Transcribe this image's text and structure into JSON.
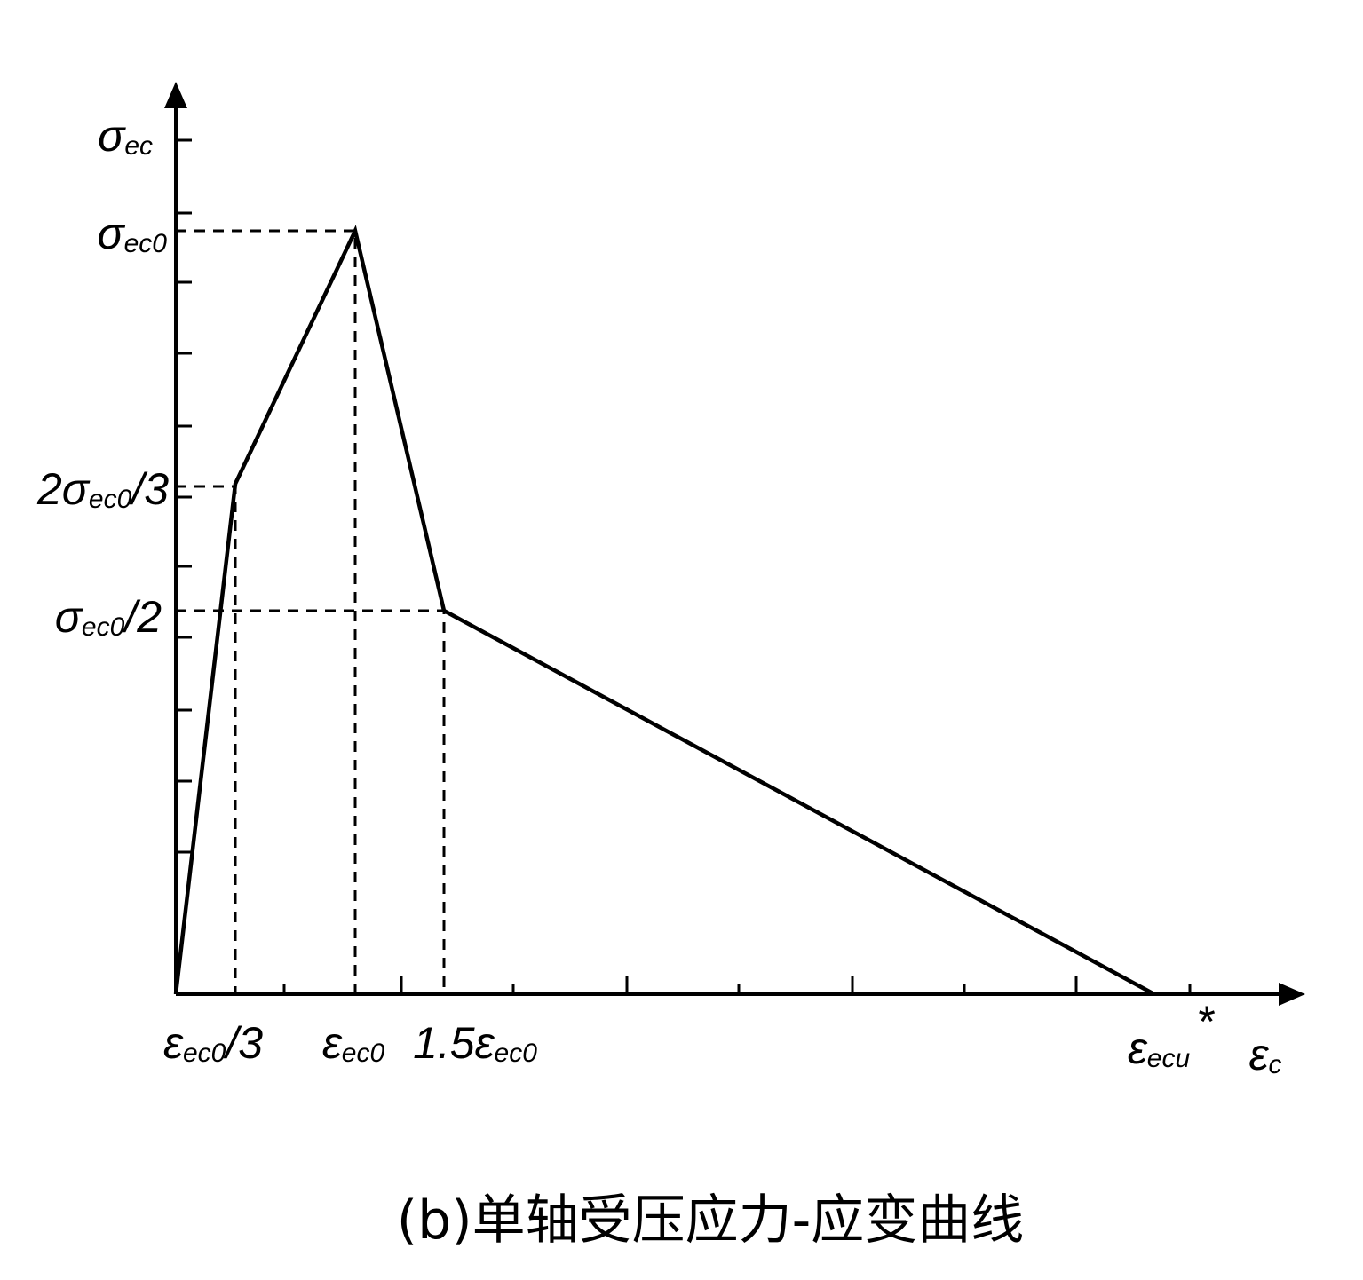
{
  "y_labels": [
    [
      {
        "t": "σ"
      },
      {
        "sub": "ec"
      }
    ],
    [
      {
        "t": "σ"
      },
      {
        "sub": "ec0"
      }
    ],
    [
      {
        "t": "2σ"
      },
      {
        "sub": "ec0"
      },
      {
        "t": "/3"
      }
    ],
    [
      {
        "t": "σ"
      },
      {
        "sub": "ec0"
      },
      {
        "t": "/2"
      }
    ]
  ],
  "x_labels": [
    [
      {
        "t": "ε"
      },
      {
        "sub": "ec0"
      },
      {
        "t": "/3"
      }
    ],
    [
      {
        "t": "ε"
      },
      {
        "sub": "ec0"
      }
    ],
    [
      {
        "t": "1.5ε"
      },
      {
        "sub": "ec0"
      }
    ],
    [
      {
        "t": "ε"
      },
      {
        "sub": "ecu"
      }
    ],
    [
      {
        "t": "*"
      }
    ],
    [
      {
        "t": "ε"
      },
      {
        "sub": "c"
      }
    ]
  ],
  "caption": "(b)单轴受压应力-应变曲线"
}
